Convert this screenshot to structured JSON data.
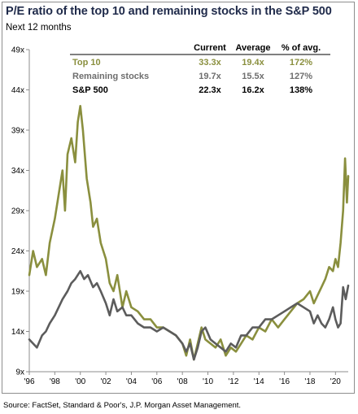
{
  "title": "P/E ratio of the top 10 and remaining stocks in the S&P 500",
  "subtitle": "Next 12 months",
  "source": "Source: FactSet, Standard & Poor's, J.P. Morgan Asset Management.",
  "colors": {
    "top10": "#8a8f3e",
    "remaining": "#5c5c5c",
    "sp500": "#000000",
    "axis": "#8e8e8e"
  },
  "table": {
    "headers": [
      "Current",
      "Average",
      "% of avg."
    ],
    "rows": [
      {
        "label": "Top 10",
        "current": "33.3x",
        "average": "19.4x",
        "pct": "172%",
        "color": "#8a8f3e"
      },
      {
        "label": "Remaining stocks",
        "current": "19.7x",
        "average": "15.5x",
        "pct": "127%",
        "color": "#6e6e6e"
      },
      {
        "label": "S&P 500",
        "current": "22.3x",
        "average": "16.2x",
        "pct": "138%",
        "color": "#000000"
      }
    ]
  },
  "chart_data": {
    "type": "line",
    "ylim": [
      9,
      49
    ],
    "xlim": [
      1996,
      2021
    ],
    "yticks": [
      9,
      14,
      19,
      24,
      29,
      34,
      39,
      44,
      49
    ],
    "ytick_labels": [
      "9x",
      "14x",
      "19x",
      "24x",
      "29x",
      "34x",
      "39x",
      "44x",
      "49x"
    ],
    "xticks": [
      1996,
      1998,
      2000,
      2002,
      2004,
      2006,
      2008,
      2010,
      2012,
      2014,
      2016,
      2018,
      2020
    ],
    "xtick_labels": [
      "'96",
      "'98",
      "'00",
      "'02",
      "'04",
      "'06",
      "'08",
      "'10",
      "'12",
      "'14",
      "'16",
      "'18",
      "'20"
    ],
    "grid": false,
    "series": [
      {
        "name": "Top 10",
        "color": "#8a8f3e",
        "x": [
          1996,
          1996.3,
          1996.6,
          1997,
          1997.3,
          1997.6,
          1998,
          1998.3,
          1998.6,
          1998.8,
          1999,
          1999.3,
          1999.6,
          1999.8,
          2000,
          2000.2,
          2000.5,
          2000.8,
          2001,
          2001.3,
          2001.6,
          2002,
          2002.3,
          2002.6,
          2002.9,
          2003.3,
          2003.6,
          2004,
          2004.5,
          2005,
          2005.5,
          2006,
          2006.5,
          2007,
          2007.5,
          2008,
          2008.3,
          2008.6,
          2008.9,
          2009.2,
          2009.5,
          2009.8,
          2010.2,
          2010.6,
          2011,
          2011.4,
          2011.8,
          2012.2,
          2012.6,
          2013,
          2013.5,
          2014,
          2014.5,
          2015,
          2015.5,
          2016,
          2016.5,
          2017,
          2017.5,
          2018,
          2018.3,
          2018.6,
          2018.9,
          2019.2,
          2019.5,
          2019.8,
          2020,
          2020.2,
          2020.4,
          2020.6,
          2020.75,
          2020.9,
          2021
        ],
        "y": [
          21,
          24,
          22,
          23,
          21,
          25,
          28,
          31,
          34,
          29,
          36,
          38,
          35,
          40,
          42,
          39,
          33,
          30,
          27,
          28,
          25,
          23,
          20,
          19,
          21,
          17,
          19,
          17,
          16.5,
          15.5,
          15.5,
          14.5,
          14.5,
          14,
          13.5,
          12.5,
          11,
          13,
          10.5,
          12.5,
          14.5,
          13,
          12.5,
          12,
          13,
          11,
          12,
          11.5,
          12.5,
          13.5,
          13,
          14.5,
          14,
          15.5,
          14.5,
          15.5,
          16.5,
          17.5,
          18,
          19,
          17.5,
          18.5,
          19.5,
          20.5,
          22,
          21.5,
          23,
          22,
          25,
          29,
          35.5,
          30,
          33.3
        ]
      },
      {
        "name": "Remaining stocks",
        "color": "#5c5c5c",
        "x": [
          1996,
          1996.3,
          1996.6,
          1997,
          1997.3,
          1997.6,
          1998,
          1998.3,
          1998.6,
          1999,
          1999.3,
          1999.6,
          2000,
          2000.3,
          2000.6,
          2001,
          2001.3,
          2001.6,
          2002,
          2002.3,
          2002.6,
          2002.9,
          2003.3,
          2003.6,
          2004,
          2004.5,
          2005,
          2005.5,
          2006,
          2006.5,
          2007,
          2007.5,
          2008,
          2008.3,
          2008.6,
          2008.9,
          2009.2,
          2009.5,
          2009.8,
          2010.2,
          2010.6,
          2011,
          2011.4,
          2011.8,
          2012.2,
          2012.6,
          2013,
          2013.5,
          2014,
          2014.5,
          2015,
          2015.5,
          2016,
          2016.5,
          2017,
          2017.5,
          2018,
          2018.3,
          2018.6,
          2018.9,
          2019.2,
          2019.5,
          2019.8,
          2020,
          2020.2,
          2020.4,
          2020.6,
          2020.8,
          2021
        ],
        "y": [
          13,
          12.5,
          12,
          13.5,
          14,
          15,
          16,
          17,
          18,
          19,
          20,
          20.5,
          21.5,
          20.5,
          21,
          19.5,
          20,
          19,
          17.5,
          16,
          18,
          16.5,
          17,
          16,
          16,
          15,
          14.5,
          14.5,
          14,
          14.5,
          14,
          13.5,
          12.5,
          11.5,
          12.5,
          10.5,
          12,
          14,
          14.5,
          13,
          12.5,
          12,
          11.5,
          12.5,
          12,
          13.5,
          13.5,
          14.5,
          14.5,
          15.5,
          15.5,
          16,
          16.5,
          17,
          17.5,
          17,
          16.5,
          15,
          16,
          15,
          14.5,
          15.5,
          17,
          15.5,
          14.5,
          15,
          19.5,
          18,
          19.7
        ]
      }
    ]
  }
}
